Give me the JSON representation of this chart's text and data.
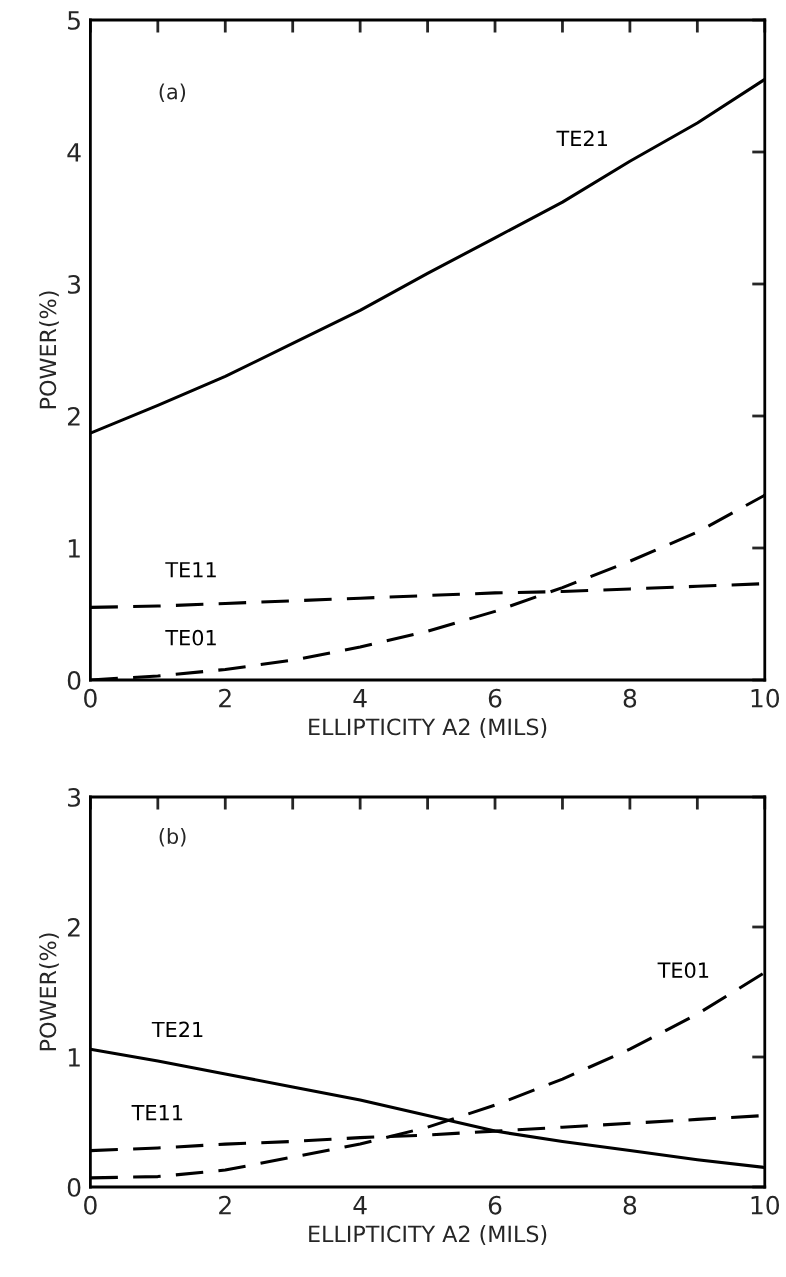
{
  "chart_data": [
    {
      "type": "line",
      "xlabel": "ELLIPTICITY A2 (MILS)",
      "ylabel": "POWER(%)",
      "annotations": [
        "(a)"
      ],
      "xlim": [
        0,
        10
      ],
      "ylim": [
        0,
        5
      ],
      "xticks": [
        0,
        {
          "value": 1,
          "label": null
        },
        2,
        {
          "value": 3,
          "label": null
        },
        4,
        {
          "value": 5,
          "label": null
        },
        6,
        {
          "value": 7,
          "label": null
        },
        8,
        {
          "value": 9,
          "label": null
        },
        10
      ],
      "yticks": [
        0,
        1,
        2,
        3,
        4,
        5
      ],
      "grid": false,
      "legend": false,
      "marker": "none",
      "x": [
        0,
        1,
        2,
        3,
        4,
        5,
        6,
        7,
        8,
        9,
        10
      ],
      "series": [
        {
          "name": "TE21",
          "color": "#000000",
          "line_style": "solid",
          "values": [
            1.87,
            2.08,
            2.3,
            2.55,
            2.8,
            3.08,
            3.35,
            3.62,
            3.93,
            4.22,
            4.55
          ]
        },
        {
          "name": "TE11",
          "color": "#000000",
          "line_style": "dashed",
          "values": [
            0.55,
            0.56,
            0.58,
            0.6,
            0.62,
            0.64,
            0.66,
            0.67,
            0.69,
            0.71,
            0.73
          ]
        },
        {
          "name": "TE01",
          "color": "#000000",
          "line_style": "dashed",
          "values": [
            0,
            0.03,
            0.08,
            0.15,
            0.25,
            0.37,
            0.52,
            0.7,
            0.9,
            1.12,
            1.4
          ]
        }
      ]
    },
    {
      "type": "line",
      "xlabel": "ELLIPTICITY A2 (MILS)",
      "ylabel": "POWER(%)",
      "annotations": [
        "(b)"
      ],
      "xlim": [
        0,
        10
      ],
      "ylim": [
        0,
        3
      ],
      "xticks": [
        0,
        {
          "value": 1,
          "label": null
        },
        2,
        {
          "value": 3,
          "label": null
        },
        4,
        {
          "value": 5,
          "label": null
        },
        6,
        {
          "value": 7,
          "label": null
        },
        8,
        {
          "value": 9,
          "label": null
        },
        10
      ],
      "yticks": [
        0,
        1,
        2,
        3
      ],
      "grid": false,
      "legend": false,
      "marker": "none",
      "x": [
        0,
        1,
        2,
        3,
        4,
        5,
        6,
        7,
        8,
        9,
        10
      ],
      "series": [
        {
          "name": "TE21",
          "color": "#000000",
          "line_style": "solid",
          "values": [
            1.06,
            0.97,
            0.87,
            0.77,
            0.67,
            0.55,
            0.43,
            0.35,
            0.28,
            0.21,
            0.15
          ]
        },
        {
          "name": "TE11",
          "color": "#000000",
          "line_style": "dashed",
          "values": [
            0.28,
            0.3,
            0.33,
            0.35,
            0.38,
            0.4,
            0.43,
            0.46,
            0.49,
            0.52,
            0.55
          ]
        },
        {
          "name": "TE01",
          "color": "#000000",
          "line_style": "dashed",
          "values": [
            0.07,
            0.08,
            0.13,
            0.23,
            0.33,
            0.46,
            0.63,
            0.83,
            1.06,
            1.33,
            1.65
          ]
        }
      ]
    }
  ]
}
